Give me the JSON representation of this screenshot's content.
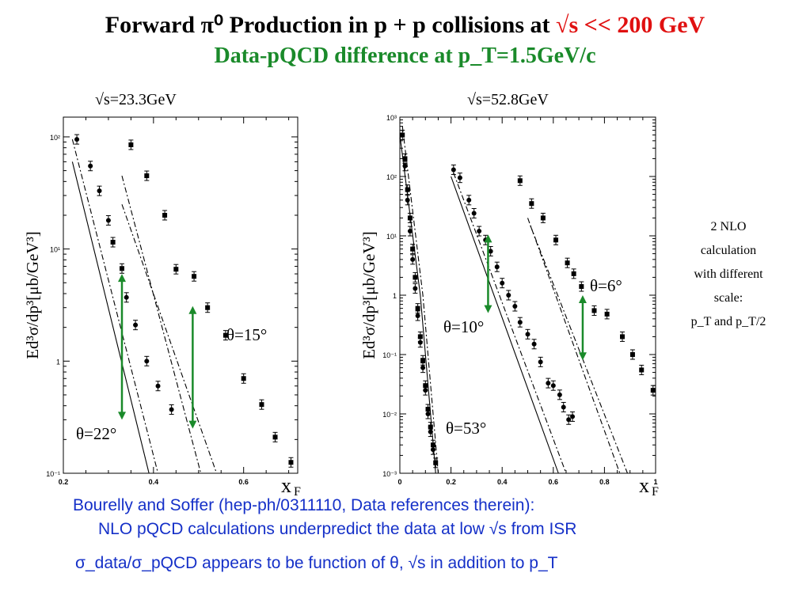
{
  "slide": {
    "title_main": "Forward π⁰ Production in p + p collisions at ",
    "title_energy": "√s << 200 GeV",
    "subtitle": "Data-pQCD difference at p_T=1.5GeV/c",
    "footnote_line1": "Bourelly and Soffer (hep-ph/0311110, Data references therein):",
    "footnote_line2": "NLO pQCD calculations underpredict the data at low √s from ISR",
    "footnote_line3": "σ_data/σ_pQCD appears to be function of θ, √s in addition to p_T",
    "side_note": [
      "2 NLO",
      "calculation",
      "with different",
      "scale:",
      "p_T and  p_T/2"
    ]
  },
  "colors": {
    "title_energy": "#e01010",
    "subtitle": "#1a8a2a",
    "footnote": "#1530c8",
    "arrow": "#1a8a2a"
  },
  "chart_data": [
    {
      "type": "scatter",
      "title": "√s=23.3GeV",
      "xlabel": "x_F",
      "ylabel": "Ed³σ/dp³[μb/GeV³]",
      "xlim": [
        0.2,
        0.72
      ],
      "ylim": [
        0.1,
        150
      ],
      "log_y": true,
      "x_ticks": [
        "0.2",
        "0.4",
        "0.6"
      ],
      "y_ticks": [
        "10⁻¹",
        "1",
        "10¹",
        "10²"
      ],
      "annotations": [
        "θ=15°",
        "θ=22°"
      ],
      "series": [
        {
          "marker": "circle",
          "points": [
            [
              0.23,
              95
            ],
            [
              0.26,
              55
            ],
            [
              0.28,
              33
            ],
            [
              0.3,
              18
            ],
            [
              0.34,
              3.7
            ],
            [
              0.36,
              2.1
            ],
            [
              0.385,
              1.0
            ],
            [
              0.41,
              0.6
            ],
            [
              0.44,
              0.37
            ]
          ]
        },
        {
          "marker": "square",
          "points": [
            [
              0.31,
              11.5
            ],
            [
              0.33,
              6.7
            ],
            [
              0.35,
              85
            ],
            [
              0.385,
              45
            ],
            [
              0.425,
              20
            ],
            [
              0.45,
              6.6
            ],
            [
              0.49,
              5.7
            ],
            [
              0.52,
              3.0
            ],
            [
              0.56,
              1.7
            ],
            [
              0.6,
              0.7
            ],
            [
              0.64,
              0.41
            ],
            [
              0.67,
              0.21
            ],
            [
              0.705,
              0.125
            ]
          ]
        }
      ],
      "curves": [
        {
          "style": "solid",
          "points": [
            [
              0.22,
              60
            ],
            [
              0.39,
              0.1
            ]
          ]
        },
        {
          "style": "dashdot",
          "points": [
            [
              0.22,
              95
            ],
            [
              0.41,
              0.1
            ]
          ]
        },
        {
          "style": "dashdot",
          "points": [
            [
              0.33,
              45
            ],
            [
              0.505,
              0.1
            ]
          ]
        },
        {
          "style": "dashdot",
          "points": [
            [
              0.33,
              25
            ],
            [
              0.54,
              0.1
            ]
          ]
        }
      ],
      "arrows": [
        {
          "x": 0.33,
          "y1": 6.0,
          "y2": 0.3
        },
        {
          "x": 0.487,
          "y1": 3.1,
          "y2": 0.25
        }
      ]
    },
    {
      "type": "scatter",
      "title": "√s=52.8GeV",
      "xlabel": "x_F",
      "ylabel": "Ed³σ/dp³[μb/GeV³]",
      "xlim": [
        0,
        1.0
      ],
      "ylim": [
        0.001,
        1000
      ],
      "log_y": true,
      "x_ticks": [
        "0",
        "0.2",
        "0.4",
        "0.6",
        "0.8",
        "1"
      ],
      "y_ticks": [
        "10⁻³",
        "10⁻²",
        "10⁻¹",
        "1",
        "10¹",
        "10²",
        "10³"
      ],
      "annotations": [
        "θ=10°",
        "θ=53°",
        "θ=6°"
      ],
      "series": [
        {
          "marker": "square",
          "points": [
            [
              0.01,
              500
            ],
            [
              0.02,
              200
            ],
            [
              0.03,
              60
            ],
            [
              0.04,
              20
            ],
            [
              0.05,
              6
            ],
            [
              0.06,
              2
            ],
            [
              0.07,
              0.6
            ],
            [
              0.08,
              0.2
            ],
            [
              0.09,
              0.08
            ],
            [
              0.1,
              0.03
            ],
            [
              0.11,
              0.012
            ],
            [
              0.12,
              0.006
            ],
            [
              0.13,
              0.003
            ],
            [
              0.14,
              0.0015
            ]
          ]
        },
        {
          "marker": "circle",
          "points": [
            [
              0.02,
              150
            ],
            [
              0.03,
              40
            ],
            [
              0.04,
              12
            ],
            [
              0.05,
              4
            ],
            [
              0.06,
              1.3
            ],
            [
              0.07,
              0.45
            ],
            [
              0.08,
              0.16
            ],
            [
              0.09,
              0.06
            ],
            [
              0.1,
              0.025
            ],
            [
              0.11,
              0.01
            ],
            [
              0.12,
              0.005
            ],
            [
              0.13,
              0.0025
            ]
          ]
        },
        {
          "marker": "circle",
          "points": [
            [
              0.21,
              130
            ],
            [
              0.235,
              95
            ],
            [
              0.27,
              40
            ],
            [
              0.29,
              24
            ],
            [
              0.31,
              12
            ],
            [
              0.335,
              8.5
            ],
            [
              0.355,
              5.5
            ],
            [
              0.38,
              3.0
            ],
            [
              0.4,
              1.6
            ],
            [
              0.425,
              1.0
            ],
            [
              0.45,
              0.65
            ],
            [
              0.47,
              0.35
            ],
            [
              0.5,
              0.22
            ],
            [
              0.525,
              0.15
            ],
            [
              0.55,
              0.075
            ],
            [
              0.58,
              0.033
            ],
            [
              0.6,
              0.03
            ],
            [
              0.625,
              0.021
            ],
            [
              0.64,
              0.013
            ],
            [
              0.66,
              0.008
            ],
            [
              0.675,
              0.009
            ]
          ]
        },
        {
          "marker": "square",
          "points": [
            [
              0.47,
              85
            ],
            [
              0.515,
              35
            ],
            [
              0.56,
              20
            ],
            [
              0.61,
              8.5
            ],
            [
              0.655,
              3.5
            ],
            [
              0.68,
              2.3
            ],
            [
              0.71,
              1.4
            ],
            [
              0.76,
              0.55
            ],
            [
              0.81,
              0.48
            ],
            [
              0.87,
              0.2
            ],
            [
              0.91,
              0.1
            ],
            [
              0.945,
              0.055
            ],
            [
              0.99,
              0.025
            ]
          ]
        }
      ],
      "curves": [
        {
          "style": "solid",
          "points": [
            [
              0.0,
              500
            ],
            [
              0.08,
              1
            ],
            [
              0.14,
              0.001
            ]
          ]
        },
        {
          "style": "dashdot",
          "points": [
            [
              0.01,
              700
            ],
            [
              0.09,
              1
            ],
            [
              0.15,
              0.001
            ]
          ]
        },
        {
          "style": "solid",
          "points": [
            [
              0.2,
              100
            ],
            [
              0.62,
              0.001
            ]
          ]
        },
        {
          "style": "dashdot",
          "points": [
            [
              0.21,
              115
            ],
            [
              0.65,
              0.001
            ]
          ]
        },
        {
          "style": "dashdot",
          "points": [
            [
              0.5,
              20
            ],
            [
              0.86,
              0.001
            ]
          ]
        },
        {
          "style": "dashdot",
          "points": [
            [
              0.51,
              15
            ],
            [
              0.89,
              0.001
            ]
          ]
        }
      ],
      "arrows": [
        {
          "x": 0.345,
          "y1": 10.5,
          "y2": 0.5
        },
        {
          "x": 0.715,
          "y1": 1.0,
          "y2": 0.08
        }
      ]
    }
  ]
}
